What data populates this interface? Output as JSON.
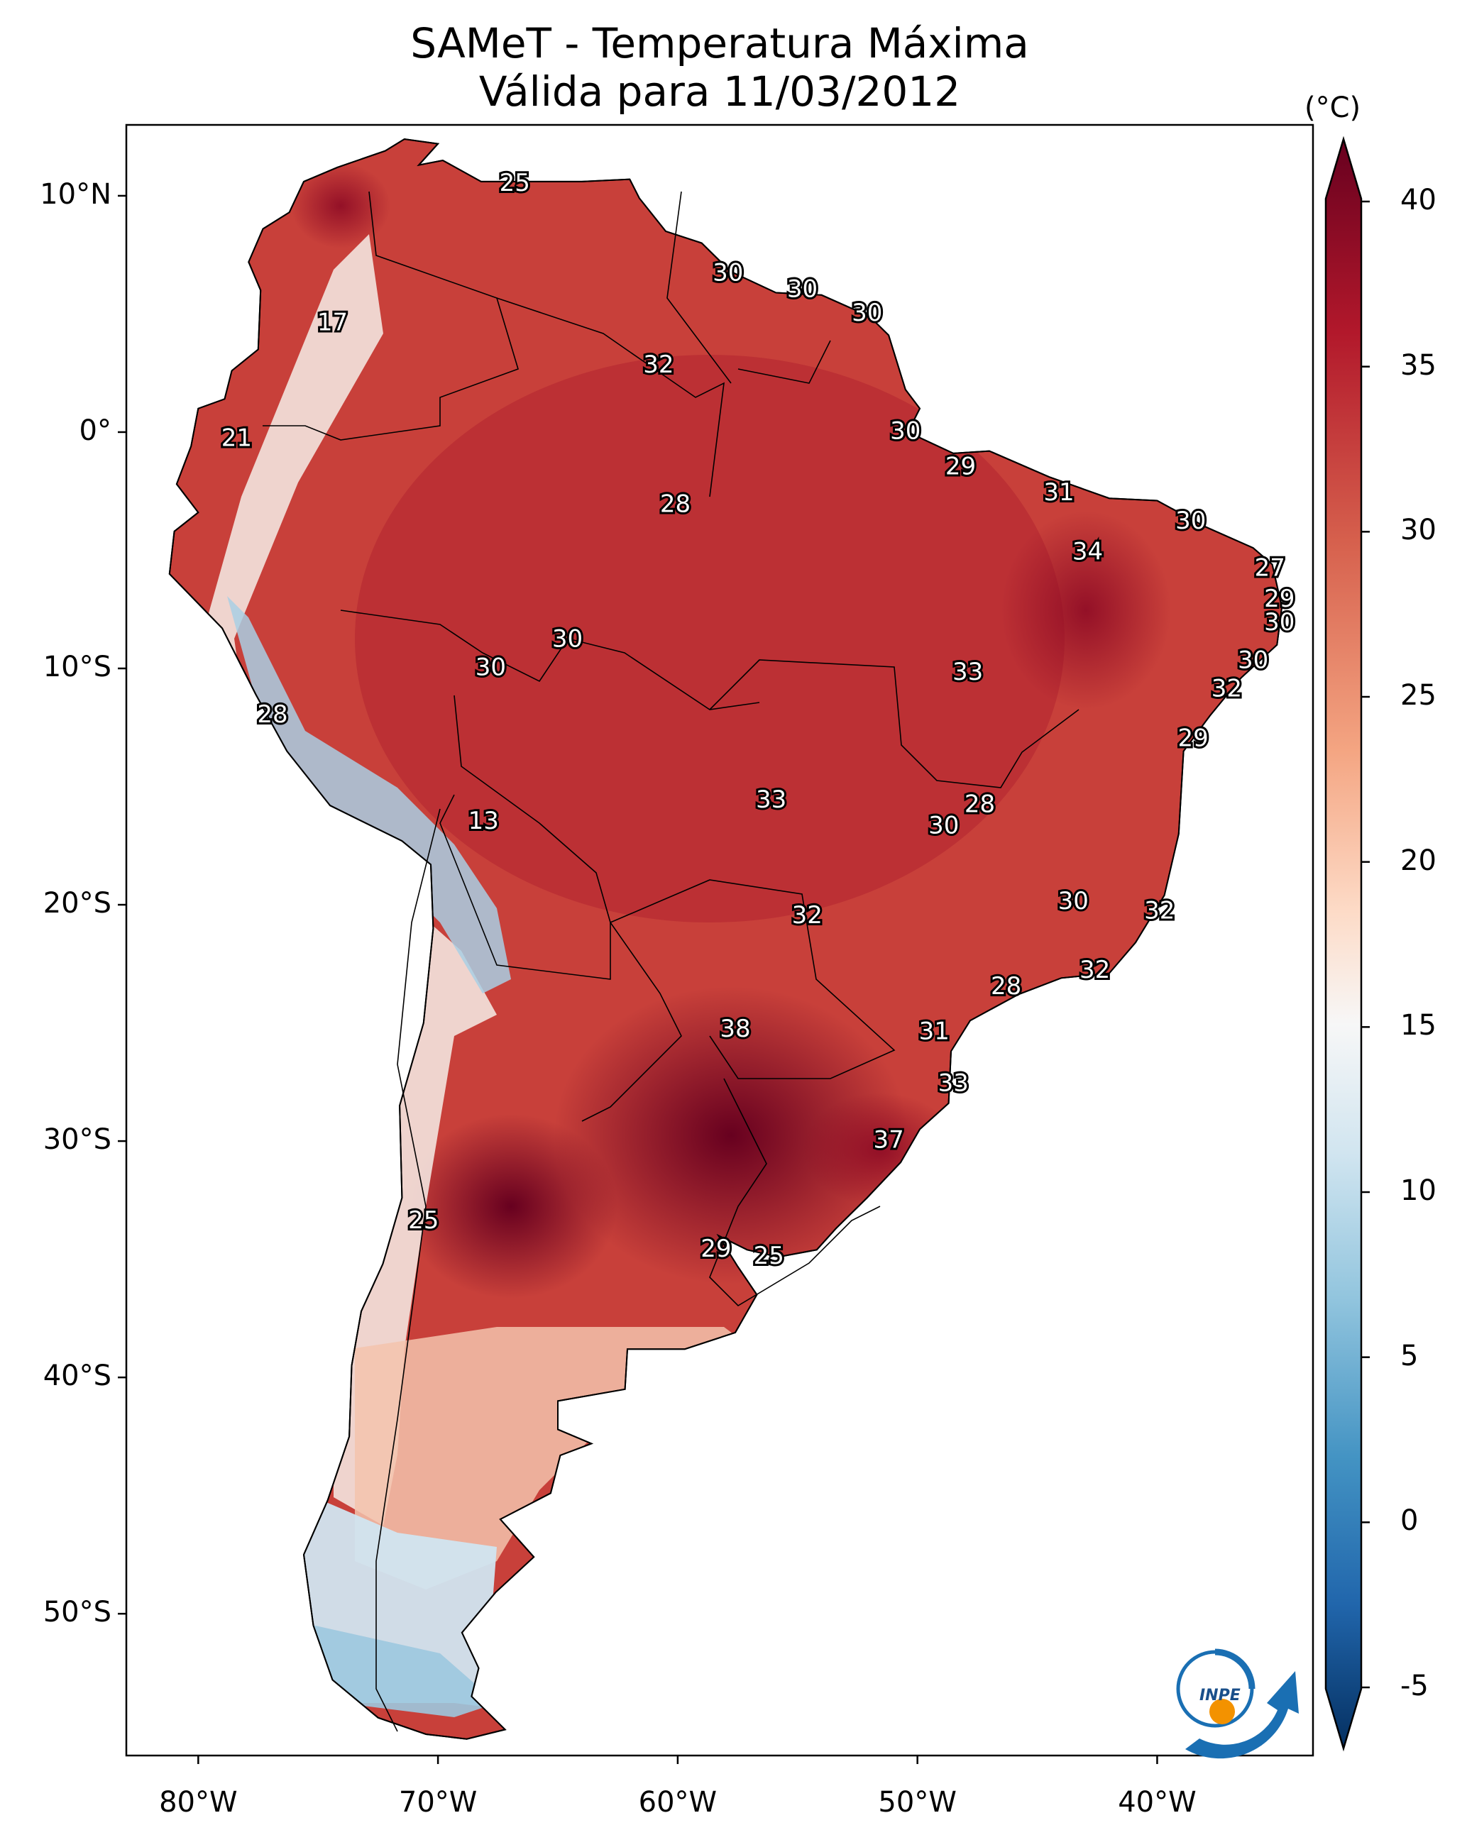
{
  "title": {
    "line1": "SAMeT - Temperatura Máxima",
    "line2": "Válida para 11/03/2012"
  },
  "axes": {
    "lat_ticks": [
      "10°N",
      "0°",
      "10°S",
      "20°S",
      "30°S",
      "40°S",
      "50°S"
    ],
    "lon_ticks": [
      "80°W",
      "70°W",
      "60°W",
      "50°W",
      "40°W"
    ]
  },
  "colorbar": {
    "unit": "(°C)",
    "ticks": [
      "40",
      "35",
      "30",
      "25",
      "20",
      "15",
      "10",
      "5",
      "0",
      "-5"
    ],
    "range": [
      -5,
      40
    ],
    "colormap": "RdBu_r",
    "colors": {
      "low": "#053061",
      "mid": "#f7f7f7",
      "high": "#67001f"
    }
  },
  "logo": {
    "text": "INPE"
  },
  "station_labels": [
    {
      "value": "25",
      "lon": -66.8,
      "lat": 10.5
    },
    {
      "value": "17",
      "lon": -74.4,
      "lat": 4.6
    },
    {
      "value": "30",
      "lon": -57.9,
      "lat": 6.7
    },
    {
      "value": "30",
      "lon": -54.8,
      "lat": 6.0
    },
    {
      "value": "30",
      "lon": -52.1,
      "lat": 5.0
    },
    {
      "value": "32",
      "lon": -60.8,
      "lat": 2.8
    },
    {
      "value": "21",
      "lon": -78.4,
      "lat": -0.3
    },
    {
      "value": "30",
      "lon": -50.5,
      "lat": 0.0
    },
    {
      "value": "29",
      "lon": -48.2,
      "lat": -1.5
    },
    {
      "value": "28",
      "lon": -60.1,
      "lat": -3.1
    },
    {
      "value": "31",
      "lon": -44.1,
      "lat": -2.6
    },
    {
      "value": "30",
      "lon": -38.6,
      "lat": -3.8
    },
    {
      "value": "34",
      "lon": -42.9,
      "lat": -5.1
    },
    {
      "value": "27",
      "lon": -35.3,
      "lat": -5.8
    },
    {
      "value": "29",
      "lon": -34.9,
      "lat": -7.1
    },
    {
      "value": "30",
      "lon": -34.9,
      "lat": -8.1
    },
    {
      "value": "30",
      "lon": -64.6,
      "lat": -8.8
    },
    {
      "value": "30",
      "lon": -67.8,
      "lat": -10.0
    },
    {
      "value": "33",
      "lon": -47.9,
      "lat": -10.2
    },
    {
      "value": "30",
      "lon": -36.0,
      "lat": -9.7
    },
    {
      "value": "32",
      "lon": -37.1,
      "lat": -10.9
    },
    {
      "value": "28",
      "lon": -76.9,
      "lat": -12.0
    },
    {
      "value": "29",
      "lon": -38.5,
      "lat": -13.0
    },
    {
      "value": "33",
      "lon": -56.1,
      "lat": -15.6
    },
    {
      "value": "28",
      "lon": -47.4,
      "lat": -15.8
    },
    {
      "value": "30",
      "lon": -48.9,
      "lat": -16.7
    },
    {
      "value": "13",
      "lon": -68.1,
      "lat": -16.5
    },
    {
      "value": "30",
      "lon": -43.5,
      "lat": -19.9
    },
    {
      "value": "32",
      "lon": -39.9,
      "lat": -20.3
    },
    {
      "value": "32",
      "lon": -54.6,
      "lat": -20.5
    },
    {
      "value": "32",
      "lon": -42.6,
      "lat": -22.8
    },
    {
      "value": "28",
      "lon": -46.3,
      "lat": -23.5
    },
    {
      "value": "38",
      "lon": -57.6,
      "lat": -25.3
    },
    {
      "value": "31",
      "lon": -49.3,
      "lat": -25.4
    },
    {
      "value": "33",
      "lon": -48.5,
      "lat": -27.6
    },
    {
      "value": "37",
      "lon": -51.2,
      "lat": -30.0
    },
    {
      "value": "25",
      "lon": -70.6,
      "lat": -33.4
    },
    {
      "value": "29",
      "lon": -58.4,
      "lat": -34.6
    },
    {
      "value": "25",
      "lon": -56.2,
      "lat": -34.9
    }
  ]
}
